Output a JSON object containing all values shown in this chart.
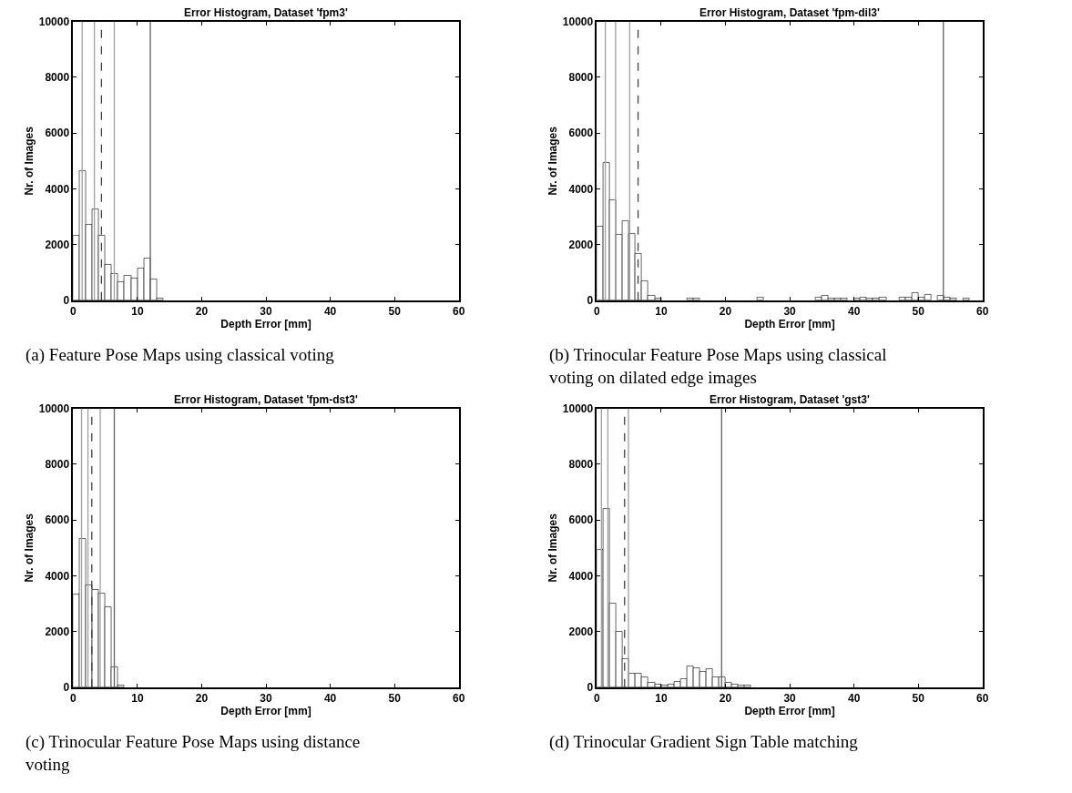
{
  "chart_data": [
    {
      "type": "histogram",
      "title": "Error Histogram, Dataset 'fpm3'",
      "xlabel": "Depth Error [mm]",
      "ylabel": "Nr. of Images",
      "color": "#ffffff",
      "bins": [
        0,
        1,
        2,
        3,
        4,
        5,
        6,
        7,
        8,
        9,
        10,
        11,
        12,
        13,
        14
      ],
      "values": [
        2330,
        4640,
        2700,
        3270,
        2330,
        1270,
        950,
        640,
        890,
        780,
        1160,
        1510,
        760,
        50
      ],
      "xlim": [
        0,
        60
      ],
      "xticks": [
        0,
        10,
        20,
        30,
        40,
        50,
        60
      ],
      "ylim": [
        0,
        10000
      ],
      "yticks": [
        0,
        2000,
        4000,
        6000,
        8000,
        10000
      ],
      "grid": false,
      "ref_lines": [
        {
          "axis": "x",
          "value": 1.4,
          "color": "#a0a0a0",
          "line_style": "solid"
        },
        {
          "axis": "x",
          "value": 3.3,
          "color": "#a0a0a0",
          "line_style": "solid"
        },
        {
          "axis": "x",
          "value": 4.4,
          "color": "#404040",
          "line_style": "dashed"
        },
        {
          "axis": "x",
          "value": 6.4,
          "color": "#a0a0a0",
          "line_style": "solid"
        },
        {
          "axis": "x",
          "value": 12.0,
          "color": "#606060",
          "line_style": "solid"
        }
      ],
      "annotations": [
        "(a) Feature Pose Maps using classical voting"
      ]
    },
    {
      "type": "histogram",
      "title": "Error Histogram, Dataset 'fpm-dil3'",
      "xlabel": "Depth Error [mm]",
      "ylabel": "Nr. of Images",
      "color": "#ffffff",
      "bins": [
        0,
        1,
        2,
        3,
        4,
        5,
        6,
        7,
        8,
        9,
        10,
        11,
        12,
        13,
        14,
        15,
        16,
        17,
        18,
        19,
        20,
        21,
        22,
        23,
        24,
        25,
        26,
        27,
        28,
        29,
        30,
        31,
        32,
        33,
        34,
        35,
        36,
        37,
        38,
        39,
        40,
        41,
        42,
        43,
        44,
        45,
        46,
        47,
        48,
        49,
        50,
        51,
        52,
        53,
        54,
        55,
        56,
        57,
        58,
        59
      ],
      "values": [
        2650,
        4930,
        3580,
        2350,
        2830,
        2380,
        1660,
        700,
        150,
        50,
        0,
        0,
        0,
        0,
        50,
        50,
        0,
        0,
        0,
        0,
        0,
        0,
        0,
        0,
        0,
        100,
        0,
        0,
        0,
        0,
        0,
        0,
        0,
        0,
        100,
        150,
        50,
        50,
        50,
        0,
        50,
        100,
        50,
        50,
        100,
        0,
        0,
        100,
        100,
        250,
        100,
        200,
        0,
        150,
        100,
        50,
        0,
        50,
        0
      ],
      "xlim": [
        0,
        60
      ],
      "xticks": [
        0,
        10,
        20,
        30,
        40,
        50,
        60
      ],
      "ylim": [
        0,
        10000
      ],
      "yticks": [
        0,
        2000,
        4000,
        6000,
        8000,
        10000
      ],
      "grid": false,
      "ref_lines": [
        {
          "axis": "x",
          "value": 1.3,
          "color": "#a0a0a0",
          "line_style": "solid"
        },
        {
          "axis": "x",
          "value": 2.9,
          "color": "#a0a0a0",
          "line_style": "solid"
        },
        {
          "axis": "x",
          "value": 5.1,
          "color": "#a0a0a0",
          "line_style": "solid"
        },
        {
          "axis": "x",
          "value": 6.4,
          "color": "#404040",
          "line_style": "dashed"
        },
        {
          "axis": "x",
          "value": 53.9,
          "color": "#606060",
          "line_style": "solid"
        }
      ],
      "annotations": [
        "(b) Trinocular Feature Pose Maps using classical voting on dilated edge images"
      ]
    },
    {
      "type": "histogram",
      "title": "Error Histogram, Dataset 'fpm-dst3'",
      "xlabel": "Depth Error [mm]",
      "ylabel": "Nr. of Images",
      "color": "#ffffff",
      "bins": [
        0,
        1,
        2,
        3,
        4,
        5,
        6,
        7,
        8
      ],
      "values": [
        3330,
        5340,
        3660,
        3500,
        3350,
        2860,
        720,
        70
      ],
      "xlim": [
        0,
        60
      ],
      "xticks": [
        0,
        10,
        20,
        30,
        40,
        50,
        60
      ],
      "ylim": [
        0,
        10000
      ],
      "yticks": [
        0,
        2000,
        4000,
        6000,
        8000,
        10000
      ],
      "grid": false,
      "ref_lines": [
        {
          "axis": "x",
          "value": 1.3,
          "color": "#a0a0a0",
          "line_style": "solid"
        },
        {
          "axis": "x",
          "value": 2.3,
          "color": "#a0a0a0",
          "line_style": "solid"
        },
        {
          "axis": "x",
          "value": 2.9,
          "color": "#404040",
          "line_style": "dashed"
        },
        {
          "axis": "x",
          "value": 4.2,
          "color": "#a0a0a0",
          "line_style": "solid"
        },
        {
          "axis": "x",
          "value": 6.4,
          "color": "#606060",
          "line_style": "solid"
        }
      ],
      "annotations": [
        "(c) Trinocular Feature Pose Maps using distance voting"
      ]
    },
    {
      "type": "histogram",
      "title": "Error Histogram, Dataset 'gst3'",
      "xlabel": "Depth Error [mm]",
      "ylabel": "Nr. of Images",
      "color": "#ffffff",
      "bins": [
        0,
        1,
        2,
        3,
        4,
        5,
        6,
        7,
        8,
        9,
        10,
        11,
        12,
        13,
        14,
        15,
        16,
        17,
        18,
        19,
        20,
        21,
        22,
        23,
        24
      ],
      "values": [
        4950,
        6400,
        3000,
        2000,
        1000,
        500,
        500,
        350,
        150,
        100,
        50,
        100,
        200,
        300,
        750,
        700,
        550,
        650,
        350,
        350,
        150,
        100,
        50,
        50
      ],
      "xlim": [
        0,
        60
      ],
      "xticks": [
        0,
        10,
        20,
        30,
        40,
        50,
        60
      ],
      "ylim": [
        0,
        10000
      ],
      "yticks": [
        0,
        2000,
        4000,
        6000,
        8000,
        10000
      ],
      "grid": false,
      "ref_lines": [
        {
          "axis": "x",
          "value": 0.7,
          "color": "#a0a0a0",
          "line_style": "solid"
        },
        {
          "axis": "x",
          "value": 1.7,
          "color": "#a0a0a0",
          "line_style": "solid"
        },
        {
          "axis": "x",
          "value": 4.3,
          "color": "#404040",
          "line_style": "dashed"
        },
        {
          "axis": "x",
          "value": 4.9,
          "color": "#a0a0a0",
          "line_style": "solid"
        },
        {
          "axis": "x",
          "value": 19.4,
          "color": "#606060",
          "line_style": "solid"
        }
      ],
      "annotations": [
        "(d) Trinocular Gradient Sign Table matching"
      ]
    }
  ]
}
